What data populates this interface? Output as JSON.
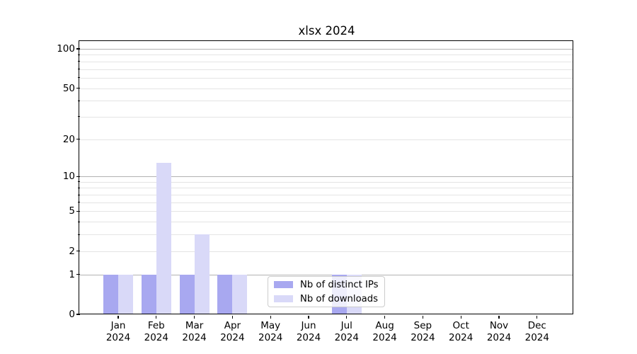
{
  "title": "xlsx 2024",
  "colors": {
    "distinct_ips": "#a8a8f0",
    "downloads": "#d9d9f8",
    "grid_major": "#b2b2b2",
    "grid_minor": "#e4e4e4",
    "axis": "#000000",
    "background": "#ffffff",
    "legend_border": "#cccccc"
  },
  "chart_data": {
    "type": "bar",
    "title": "xlsx 2024",
    "categories": [
      "Jan",
      "Feb",
      "Mar",
      "Apr",
      "May",
      "Jun",
      "Jul",
      "Aug",
      "Sep",
      "Oct",
      "Nov",
      "Dec"
    ],
    "year": "2024",
    "series": [
      {
        "name": "Nb of distinct IPs",
        "color": "#a8a8f0",
        "values": [
          1,
          1,
          1,
          1,
          0,
          0,
          1,
          0,
          0,
          0,
          0,
          0
        ]
      },
      {
        "name": "Nb of downloads",
        "color": "#d9d9f8",
        "values": [
          1,
          13,
          3,
          1,
          0,
          0,
          1,
          0,
          0,
          0,
          0,
          0
        ]
      }
    ],
    "yscale": "log1p",
    "yticks": [
      0,
      1,
      2,
      5,
      10,
      20,
      50,
      100
    ],
    "yticks_major_emphasis": [
      1,
      10,
      100
    ],
    "yticks_minor": [
      3,
      4,
      6,
      7,
      8,
      9,
      30,
      40,
      60,
      70,
      80,
      90
    ],
    "ylim": [
      0,
      114
    ],
    "xlabel": "",
    "ylabel": "",
    "grid": true,
    "legend_position": "lower-center"
  }
}
